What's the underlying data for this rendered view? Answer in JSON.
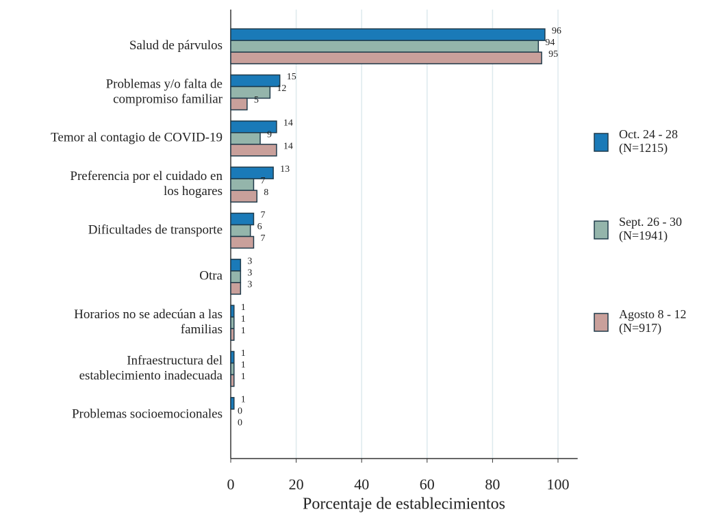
{
  "chart_data": {
    "type": "barh",
    "xlabel": "Porcentaje de establecimientos",
    "categories": [
      [
        "Salud de párvulos"
      ],
      [
        "Problemas y/o falta de",
        "compromiso familiar"
      ],
      [
        "Temor al contagio de COVID-19"
      ],
      [
        "Preferencia por el cuidado en",
        "los hogares"
      ],
      [
        "Dificultades de transporte"
      ],
      [
        "Otra"
      ],
      [
        "Horarios no se adecúan a las",
        "familias"
      ],
      [
        "Infraestructura del",
        "establecimiento inadecuada"
      ],
      [
        "Problemas socioemocionales"
      ]
    ],
    "series": [
      {
        "name": "Oct. 24 - 28 (N=1215)",
        "color": "#1a7ab8",
        "values": [
          96,
          15,
          14,
          13,
          7,
          3,
          1,
          1,
          1
        ]
      },
      {
        "name": "Sept. 26 - 30 (N=1941)",
        "color": "#94b5ab",
        "values": [
          94,
          12,
          9,
          7,
          6,
          3,
          1,
          1,
          0
        ]
      },
      {
        "name": "Agosto 8 - 12 (N=917)",
        "color": "#c9a09b",
        "values": [
          95,
          5,
          14,
          8,
          7,
          3,
          1,
          1,
          0
        ]
      }
    ],
    "xlim": [
      0,
      106
    ],
    "xticks": [
      0,
      20,
      40,
      60,
      80,
      100
    ],
    "grid": true,
    "legend": "right"
  }
}
